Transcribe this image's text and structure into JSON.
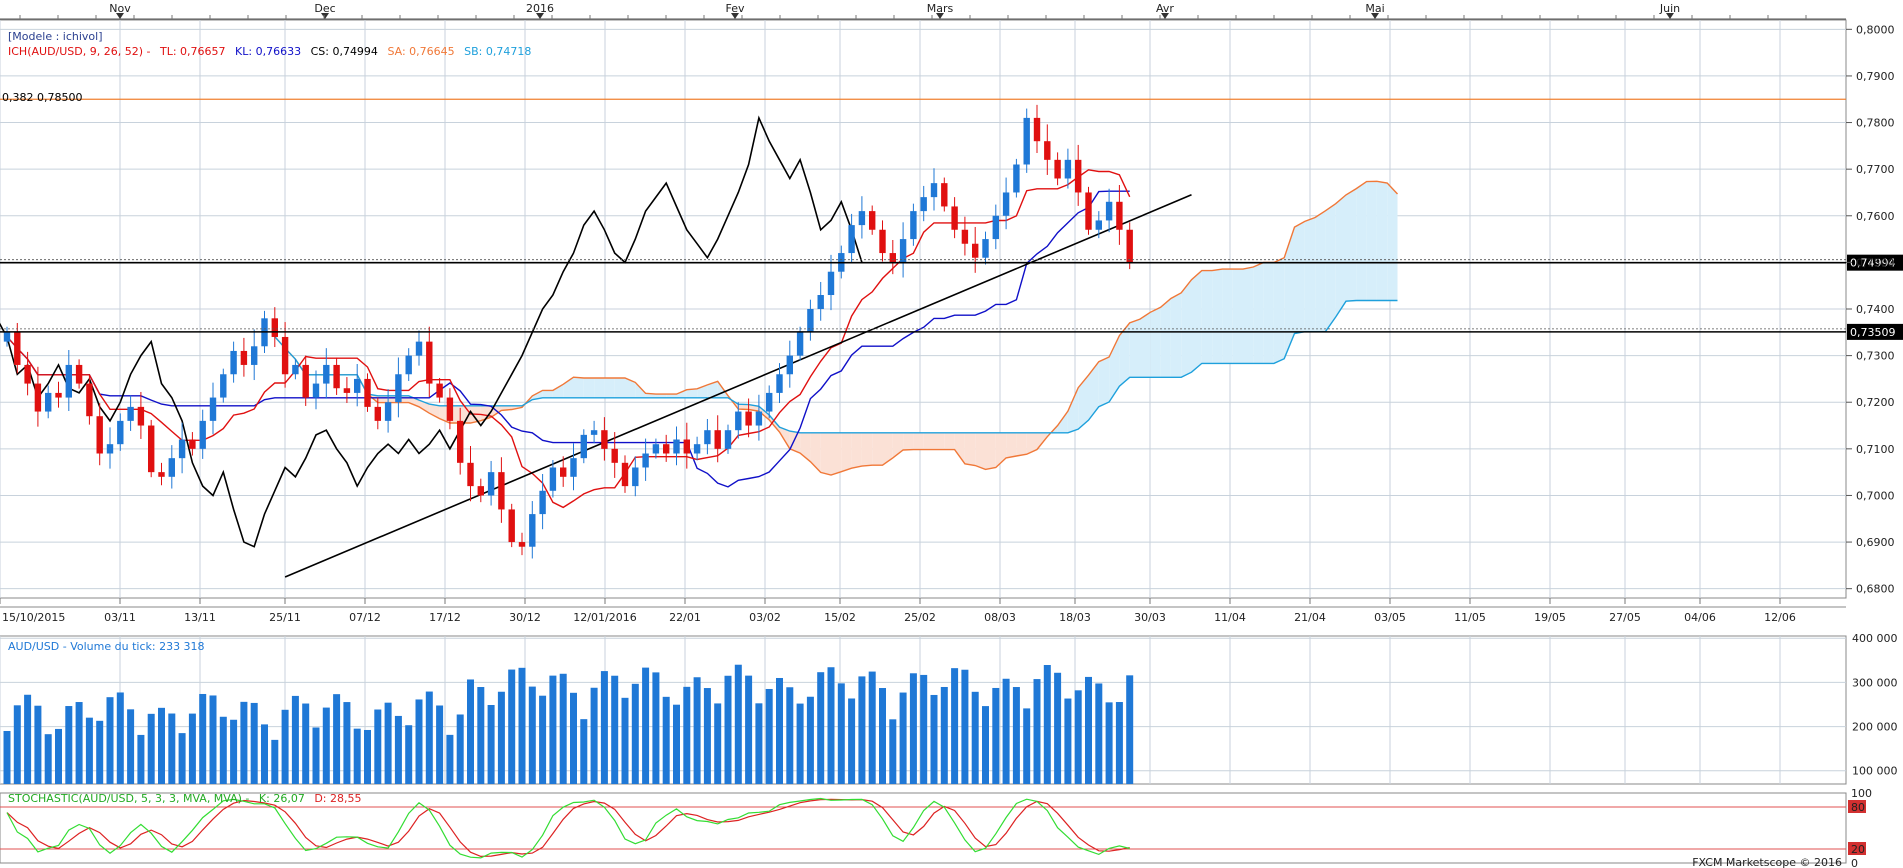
{
  "header": {
    "model_label": "[Modele : ichivol]",
    "ich": {
      "name": "ICH(AUD/USD, 9, 26, 52) -",
      "tl": "TL: 0,76657",
      "kl": "KL: 0,76633",
      "cs": "CS: 0,74994",
      "sa": "SA: 0,76645",
      "sb": "SB: 0,74718"
    },
    "fib_label": "0,382 0,78500"
  },
  "colors": {
    "up": "#1f78d6",
    "down": "#e01010",
    "tenkan": "#e01010",
    "kijun": "#1010c8",
    "chikou": "#000000",
    "spanA": "#f07838",
    "spanB": "#1ea0dc",
    "cloud_bull": "#d6eefa",
    "cloud_bear": "#fbe1d6",
    "volume": "#1f78d6",
    "stoch_k": "#33dd33",
    "stoch_d": "#dd2222",
    "grid": "#c8d2dc",
    "fib": "#f08030"
  },
  "chart_data": [
    {
      "type": "candlestick",
      "title": "AUD/USD",
      "top_axis_months": [
        "Nov",
        "Dec",
        "2016",
        "Fev",
        "Mars",
        "Avr",
        "Mai",
        "Juin"
      ],
      "x_dates": [
        "15/10/2015",
        "03/11",
        "13/11",
        "25/11",
        "07/12",
        "17/12",
        "30/12",
        "12/01/2016",
        "22/01",
        "03/02",
        "15/02",
        "25/02",
        "08/03",
        "18/03",
        "30/03",
        "11/04",
        "21/04",
        "03/05",
        "11/05",
        "19/05",
        "27/05",
        "04/06",
        "12/06"
      ],
      "y_ticks": [
        "0,6800",
        "0,6900",
        "0,7000",
        "0,7100",
        "0,7200",
        "0,7300",
        "0,7400",
        "0,7500",
        "0,7600",
        "0,7700",
        "0,7800",
        "0,7900",
        "0,8000"
      ],
      "ylim": [
        0.678,
        0.802
      ],
      "horizontal_levels": [
        {
          "value": 0.785,
          "label": "0,382 0,78500",
          "color": "#f08030"
        },
        {
          "value": 0.74994,
          "label": "0,74994",
          "color": "#000000"
        },
        {
          "value": 0.73509,
          "label": "0,73509",
          "color": "#000000"
        }
      ],
      "trendline": {
        "from": [
          27,
          0.6825
        ],
        "to": [
          115,
          0.7645
        ]
      },
      "close_path": [
        [
          0,
          0.735
        ],
        [
          1,
          0.728
        ],
        [
          2,
          0.724
        ],
        [
          3,
          0.718
        ],
        [
          4,
          0.722
        ],
        [
          5,
          0.721
        ],
        [
          6,
          0.728
        ],
        [
          7,
          0.724
        ],
        [
          8,
          0.717
        ],
        [
          9,
          0.709
        ],
        [
          10,
          0.711
        ],
        [
          11,
          0.716
        ],
        [
          12,
          0.719
        ],
        [
          13,
          0.715
        ],
        [
          14,
          0.705
        ],
        [
          15,
          0.704
        ],
        [
          16,
          0.708
        ],
        [
          17,
          0.712
        ],
        [
          18,
          0.71
        ],
        [
          19,
          0.716
        ],
        [
          20,
          0.721
        ],
        [
          21,
          0.726
        ],
        [
          22,
          0.731
        ],
        [
          23,
          0.728
        ],
        [
          24,
          0.732
        ],
        [
          25,
          0.738
        ],
        [
          26,
          0.734
        ],
        [
          27,
          0.726
        ],
        [
          28,
          0.728
        ],
        [
          29,
          0.721
        ],
        [
          30,
          0.724
        ],
        [
          31,
          0.728
        ],
        [
          32,
          0.723
        ],
        [
          33,
          0.722
        ],
        [
          34,
          0.725
        ],
        [
          35,
          0.719
        ],
        [
          36,
          0.716
        ],
        [
          37,
          0.72
        ],
        [
          38,
          0.726
        ],
        [
          39,
          0.73
        ],
        [
          40,
          0.733
        ],
        [
          41,
          0.724
        ],
        [
          42,
          0.721
        ],
        [
          43,
          0.716
        ],
        [
          44,
          0.707
        ],
        [
          45,
          0.702
        ],
        [
          46,
          0.7
        ],
        [
          47,
          0.705
        ],
        [
          48,
          0.697
        ],
        [
          49,
          0.69
        ],
        [
          50,
          0.689
        ],
        [
          51,
          0.696
        ],
        [
          52,
          0.701
        ],
        [
          53,
          0.706
        ],
        [
          54,
          0.704
        ],
        [
          55,
          0.708
        ],
        [
          56,
          0.713
        ],
        [
          57,
          0.714
        ],
        [
          58,
          0.71
        ],
        [
          59,
          0.707
        ],
        [
          60,
          0.702
        ],
        [
          61,
          0.706
        ],
        [
          62,
          0.709
        ],
        [
          63,
          0.711
        ],
        [
          64,
          0.709
        ],
        [
          65,
          0.712
        ],
        [
          66,
          0.709
        ],
        [
          67,
          0.711
        ],
        [
          68,
          0.714
        ],
        [
          69,
          0.71
        ],
        [
          70,
          0.714
        ],
        [
          71,
          0.718
        ],
        [
          72,
          0.715
        ],
        [
          73,
          0.718
        ],
        [
          74,
          0.722
        ],
        [
          75,
          0.726
        ],
        [
          76,
          0.73
        ],
        [
          77,
          0.735
        ],
        [
          78,
          0.74
        ],
        [
          79,
          0.743
        ],
        [
          80,
          0.748
        ],
        [
          81,
          0.752
        ],
        [
          82,
          0.758
        ],
        [
          83,
          0.761
        ],
        [
          84,
          0.757
        ],
        [
          85,
          0.752
        ],
        [
          86,
          0.75
        ],
        [
          87,
          0.755
        ],
        [
          88,
          0.761
        ],
        [
          89,
          0.764
        ],
        [
          90,
          0.767
        ],
        [
          91,
          0.762
        ],
        [
          92,
          0.757
        ],
        [
          93,
          0.754
        ],
        [
          94,
          0.751
        ],
        [
          95,
          0.755
        ],
        [
          96,
          0.76
        ],
        [
          97,
          0.765
        ],
        [
          98,
          0.771
        ],
        [
          99,
          0.781
        ],
        [
          100,
          0.776
        ],
        [
          101,
          0.772
        ],
        [
          102,
          0.768
        ],
        [
          103,
          0.772
        ],
        [
          104,
          0.765
        ],
        [
          105,
          0.757
        ],
        [
          106,
          0.759
        ],
        [
          107,
          0.763
        ],
        [
          108,
          0.757
        ],
        [
          109,
          0.75
        ]
      ],
      "series": [
        {
          "name": "TL"
        },
        {
          "name": "KL"
        },
        {
          "name": "CS"
        },
        {
          "name": "SA"
        },
        {
          "name": "SB"
        }
      ]
    },
    {
      "type": "bar",
      "title": "AUD/USD - Volume du tick: 233 318",
      "y_ticks": [
        "100 000",
        "200 000",
        "300 000",
        "400 000"
      ],
      "ylim": [
        70000,
        405000
      ]
    },
    {
      "type": "line",
      "title_parts": [
        "STOCHASTIC(AUD/USD, 5, 3, 3, MVA, MVA) -",
        "K: 26,07",
        "D: 28,55"
      ],
      "y_ticks": [
        "0",
        "20",
        "80",
        "100"
      ],
      "ylim": [
        0,
        100
      ],
      "levels": [
        20,
        80
      ]
    }
  ],
  "footer": {
    "credit": "FXCM Marketscope © 2016"
  }
}
